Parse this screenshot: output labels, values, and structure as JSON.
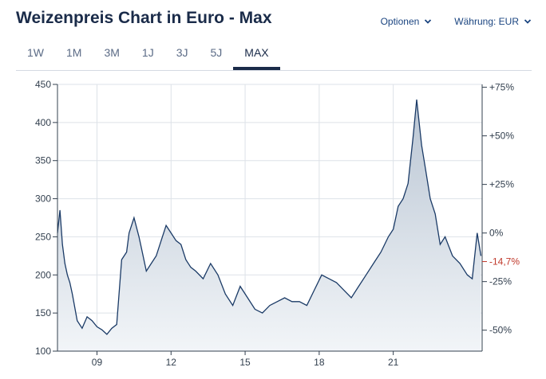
{
  "header": {
    "title": "Weizenpreis Chart in Euro - Max",
    "options_label": "Optionen",
    "currency_label": "Währung: EUR"
  },
  "tabs": [
    {
      "label": "1W",
      "active": false
    },
    {
      "label": "1M",
      "active": false
    },
    {
      "label": "3M",
      "active": false
    },
    {
      "label": "1J",
      "active": false
    },
    {
      "label": "3J",
      "active": false
    },
    {
      "label": "5J",
      "active": false
    },
    {
      "label": "MAX",
      "active": true
    }
  ],
  "colors": {
    "line": "#1a3a66",
    "fill_top": "#b9c5d3",
    "fill_bottom": "#f2f5f8",
    "grid": "#dde2e8",
    "negative": "#c0392b"
  },
  "chart_data": {
    "type": "area",
    "title": "Weizenpreis Chart in Euro - Max",
    "xlabel": "",
    "ylabel": "",
    "ylim": [
      100,
      450
    ],
    "y_ticks": [
      100,
      150,
      200,
      250,
      300,
      350,
      400,
      450
    ],
    "x_range": [
      2007.6,
      2024.8
    ],
    "x_ticks": [
      {
        "label": "09",
        "x": 2009.2
      },
      {
        "label": "12",
        "x": 2012.2
      },
      {
        "label": "15",
        "x": 2015.2
      },
      {
        "label": "18",
        "x": 2018.2
      },
      {
        "label": "21",
        "x": 2021.2
      }
    ],
    "grid": true,
    "right_axis": {
      "ticks": [
        {
          "label": "+75%",
          "value": 75
        },
        {
          "label": "+50%",
          "value": 50
        },
        {
          "label": "+25%",
          "value": 25
        },
        {
          "label": "0%",
          "value": 0
        },
        {
          "label": "-25%",
          "value": -25
        },
        {
          "label": "-50%",
          "value": -50
        }
      ],
      "last_value_label": "-14,7%",
      "last_value_pct": -14.7
    },
    "series": [
      {
        "x": [
          2007.6,
          2007.7,
          2007.8,
          2007.9,
          2008.0,
          2008.1,
          2008.2,
          2008.4,
          2008.6,
          2008.8,
          2009.0,
          2009.2,
          2009.4,
          2009.6,
          2009.8,
          2010.0,
          2010.2,
          2010.4,
          2010.5,
          2010.7,
          2010.9,
          2011.0,
          2011.2,
          2011.4,
          2011.6,
          2011.8,
          2012.0,
          2012.2,
          2012.4,
          2012.6,
          2012.8,
          2013.0,
          2013.2,
          2013.5,
          2013.8,
          2014.1,
          2014.4,
          2014.7,
          2015.0,
          2015.3,
          2015.6,
          2015.9,
          2016.2,
          2016.5,
          2016.8,
          2017.1,
          2017.4,
          2017.7,
          2018.0,
          2018.3,
          2018.6,
          2018.9,
          2019.2,
          2019.5,
          2019.8,
          2020.1,
          2020.4,
          2020.7,
          2021.0,
          2021.2,
          2021.4,
          2021.6,
          2021.8,
          2022.0,
          2022.15,
          2022.25,
          2022.35,
          2022.5,
          2022.7,
          2022.9,
          2023.1,
          2023.3,
          2023.6,
          2023.9,
          2024.2,
          2024.4,
          2024.6,
          2024.75
        ],
        "values": [
          255,
          285,
          240,
          215,
          200,
          190,
          175,
          140,
          130,
          145,
          140,
          132,
          128,
          122,
          130,
          135,
          220,
          230,
          255,
          275,
          250,
          235,
          205,
          215,
          225,
          245,
          265,
          255,
          245,
          240,
          220,
          210,
          205,
          195,
          215,
          200,
          175,
          160,
          185,
          170,
          155,
          150,
          160,
          165,
          170,
          165,
          165,
          160,
          180,
          200,
          195,
          190,
          180,
          170,
          185,
          200,
          215,
          230,
          250,
          260,
          290,
          300,
          320,
          380,
          430,
          400,
          370,
          340,
          300,
          280,
          240,
          250,
          225,
          215,
          200,
          195,
          255,
          225
        ]
      }
    ]
  }
}
